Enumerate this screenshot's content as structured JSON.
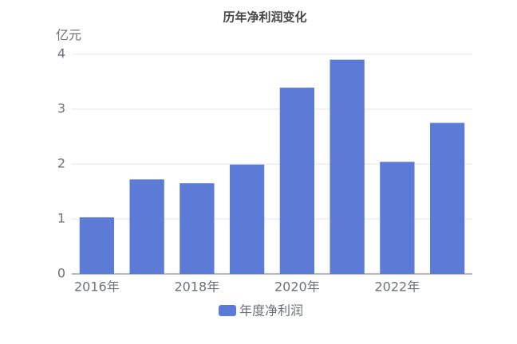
{
  "chart_data": {
    "type": "bar",
    "title": "历年净利润变化",
    "y_label": "亿元",
    "categories": [
      "2016年",
      null,
      "2018年",
      null,
      "2020年",
      null,
      "2022年",
      null
    ],
    "series": [
      {
        "name": "年度净利润",
        "color": "#5b7bd6",
        "values": [
          1.03,
          1.72,
          1.65,
          1.99,
          3.39,
          3.9,
          2.04,
          2.75
        ]
      }
    ],
    "ylim": [
      0,
      4
    ],
    "yticks": [
      0,
      1,
      2,
      3,
      4
    ],
    "grid": true,
    "legend": "bottom"
  }
}
